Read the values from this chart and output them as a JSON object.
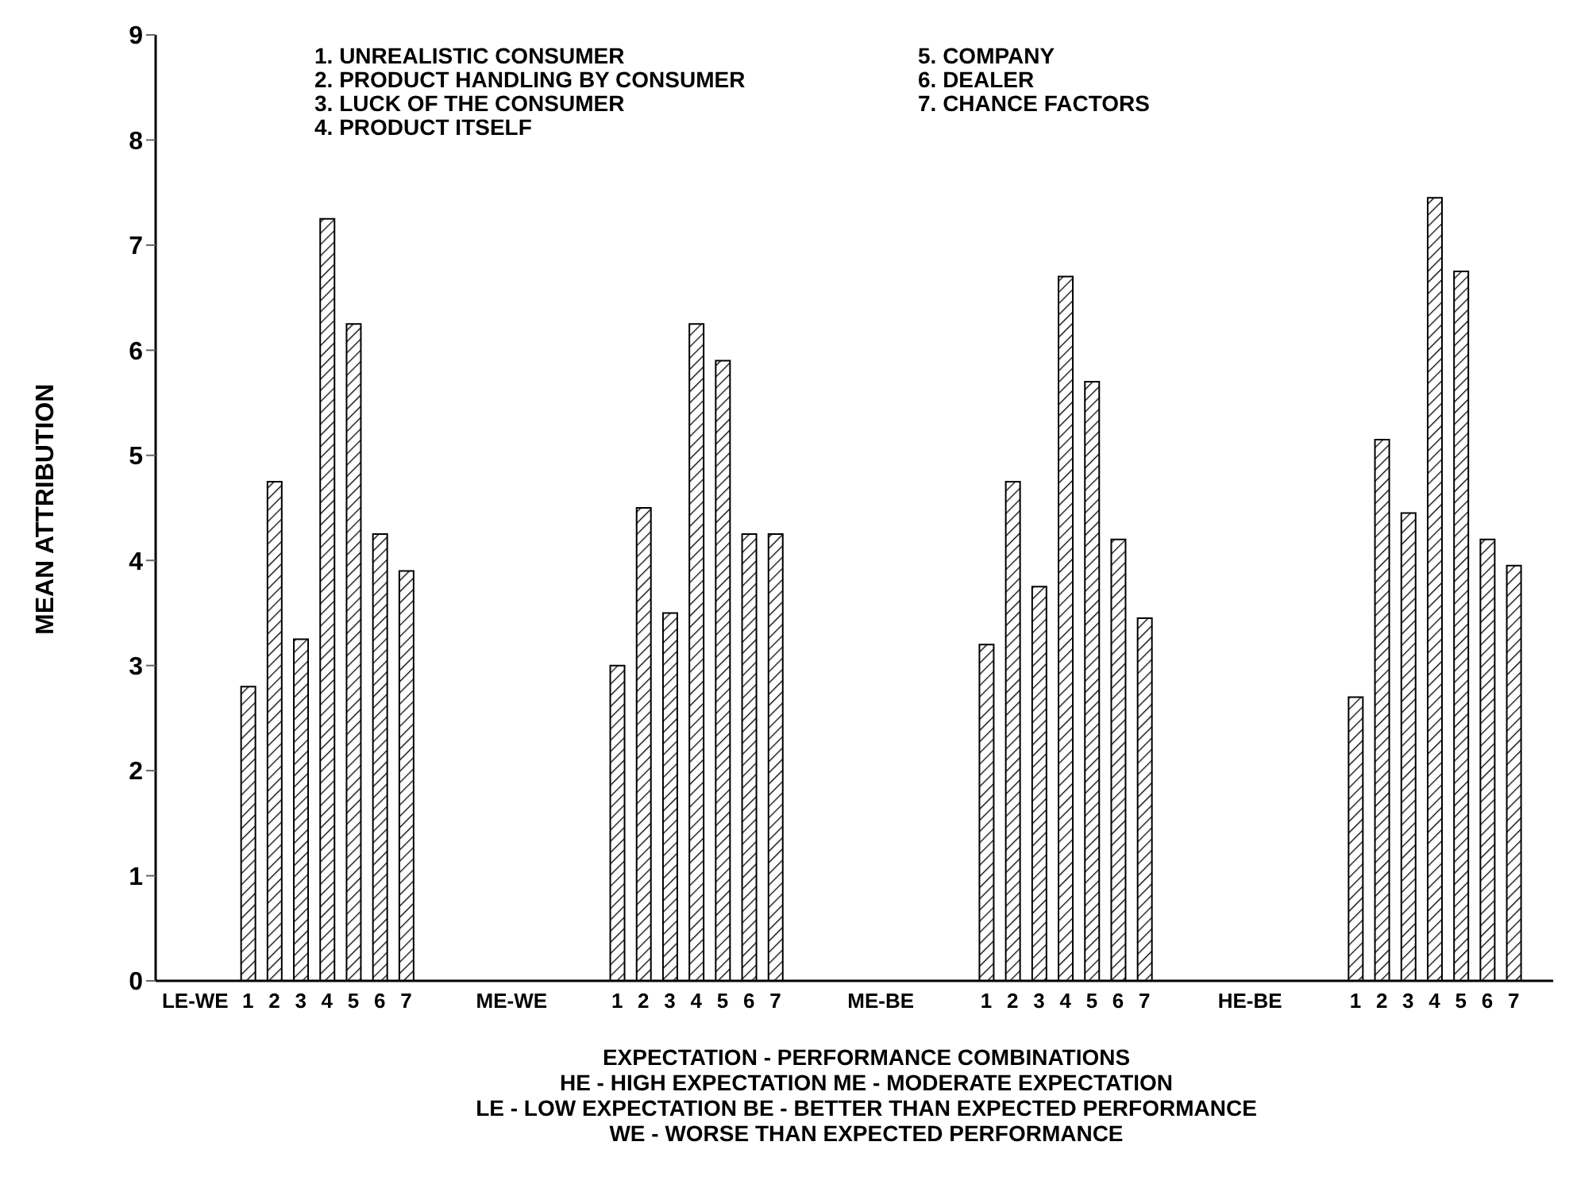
{
  "chart_data": {
    "type": "bar",
    "categories": [
      null,
      "LE-WE",
      null,
      "1",
      "2",
      "3",
      "4",
      "5",
      "6",
      "7",
      null,
      null,
      null,
      "ME-WE",
      null,
      null,
      null,
      "1",
      "2",
      "3",
      "4",
      "5",
      "6",
      "7",
      null,
      null,
      null,
      "ME-BE",
      null,
      null,
      null,
      "1",
      "2",
      "3",
      "4",
      "5",
      "6",
      "7",
      null,
      null,
      null,
      "HE-BE",
      null,
      null,
      null,
      "1",
      "2",
      "3",
      "4",
      "5",
      "6",
      "7",
      null
    ],
    "values": [
      null,
      null,
      null,
      2.8,
      4.75,
      3.25,
      7.25,
      6.25,
      4.25,
      3.9,
      null,
      null,
      null,
      null,
      null,
      null,
      null,
      3.0,
      4.5,
      3.5,
      6.25,
      5.9,
      4.25,
      4.25,
      null,
      null,
      null,
      null,
      null,
      null,
      null,
      3.2,
      4.75,
      3.75,
      6.7,
      5.7,
      4.2,
      3.45,
      null,
      null,
      null,
      null,
      null,
      null,
      null,
      2.7,
      5.15,
      4.45,
      7.45,
      6.75,
      4.2,
      3.95,
      null
    ],
    "color": "#000000",
    "ylim": [
      0,
      9
    ],
    "yticks": [
      0,
      1,
      2,
      3,
      4,
      5,
      6,
      7,
      8,
      9
    ],
    "ylabel": "MEAN ATTRIBUTION",
    "xlabel": "EXPECTATION - PERFORMANCE COMBINATIONS",
    "legend": false,
    "grid": false,
    "annotations": [
      "1. UNREALISTIC CONSUMER",
      "2. PRODUCT HANDLING BY CONSUMER",
      "3. LUCK OF THE CONSUMER",
      "4. PRODUCT ITSELF",
      "5. COMPANY",
      "6. DEALER",
      "7. CHANCE FACTORS",
      "HE - HIGH EXPECTATION   ME - MODERATE EXPECTATION",
      "LE - LOW EXPECTATION   BE - BETTER THAN EXPECTED PERFORMANCE",
      "WE - WORSE THAN EXPECTED PERFORMANCE"
    ]
  }
}
